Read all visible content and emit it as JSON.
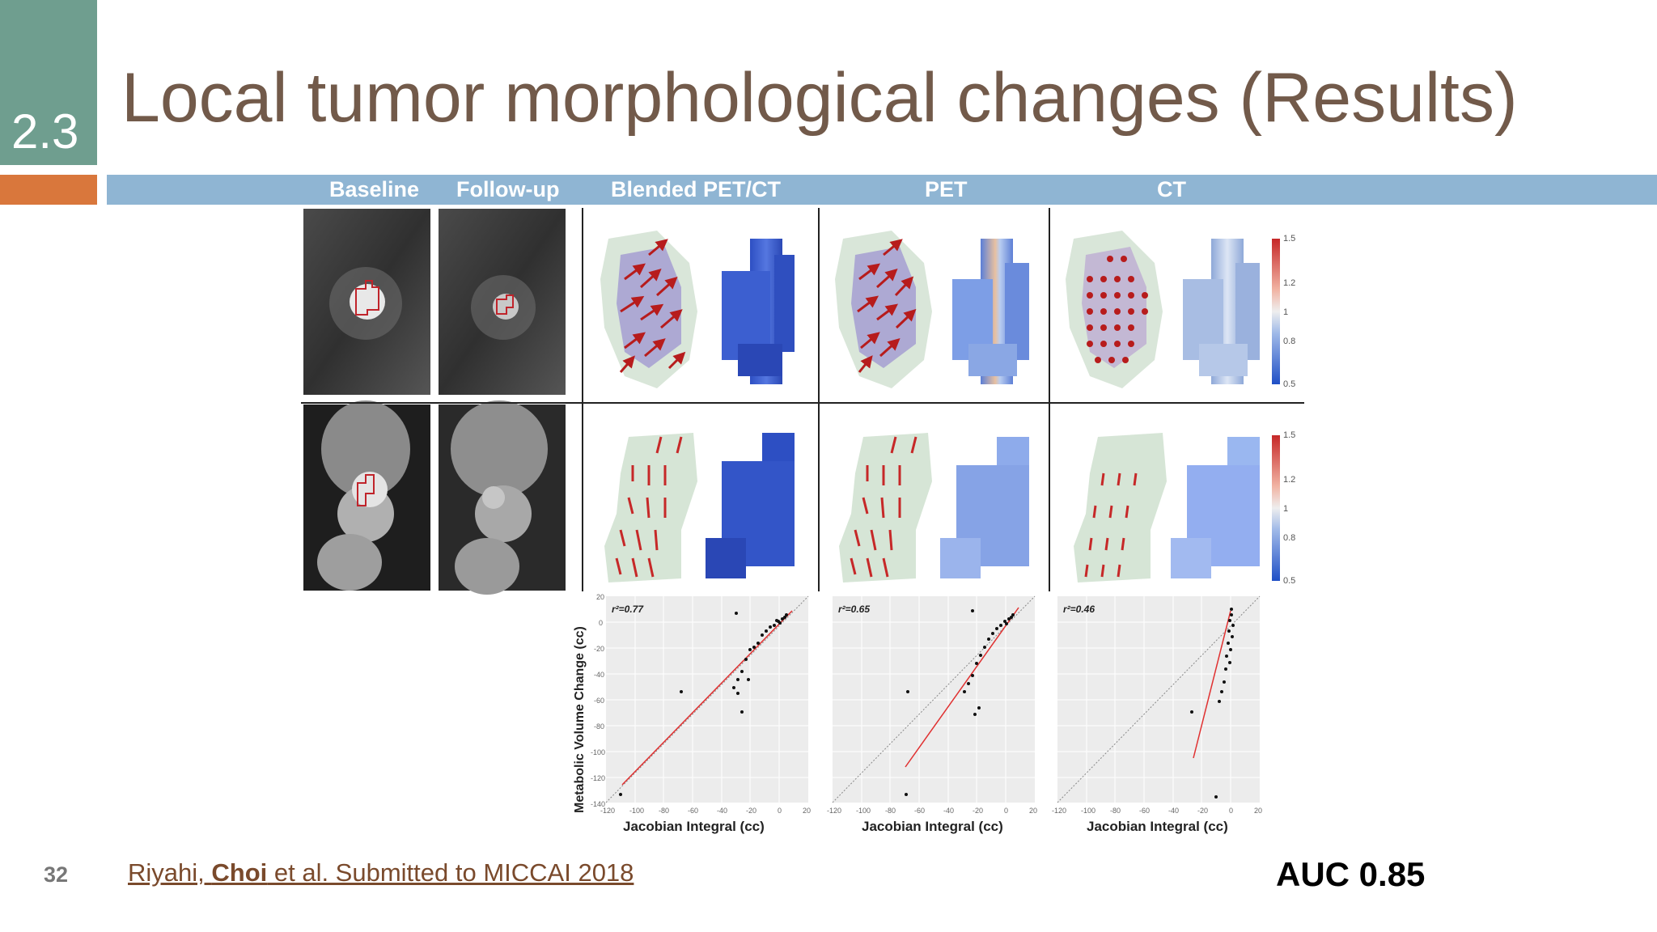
{
  "section": {
    "number": "2.3"
  },
  "title": "Local tumor morphological changes (Results)",
  "columns": [
    "Baseline",
    "Follow-up",
    "Blended PET/CT",
    "PET",
    "CT"
  ],
  "colorbar": {
    "ticks": [
      "1.5",
      "1.2",
      "1",
      "0.8",
      "0.5"
    ]
  },
  "scatter": {
    "ylabel": "Metabolic Volume Change (cc)",
    "xlabel": "Jacobian Integral (cc)",
    "x_ticks": [
      "-120",
      "-100",
      "-80",
      "-60",
      "-40",
      "-20",
      "0",
      "20"
    ],
    "y_ticks": [
      "20",
      "0",
      "-20",
      "-40",
      "-60",
      "-80",
      "-100",
      "-120",
      "-140"
    ],
    "panels": [
      {
        "r2": "r²=0.77"
      },
      {
        "r2": "r²=0.65"
      },
      {
        "r2": "r²=0.46"
      }
    ]
  },
  "footer": {
    "page_number": "32",
    "citation_prefix": "Riyahi, ",
    "citation_bold": "Choi",
    "citation_suffix": " et al. Submitted to MICCAI 2018",
    "auc": "AUC 0.85"
  },
  "colors": {
    "section_box": "#6f9e8f",
    "orange_bar": "#d9773c",
    "blue_bar": "#8fb5d3",
    "title": "#725a4a",
    "fit_line": "#e03030"
  }
}
